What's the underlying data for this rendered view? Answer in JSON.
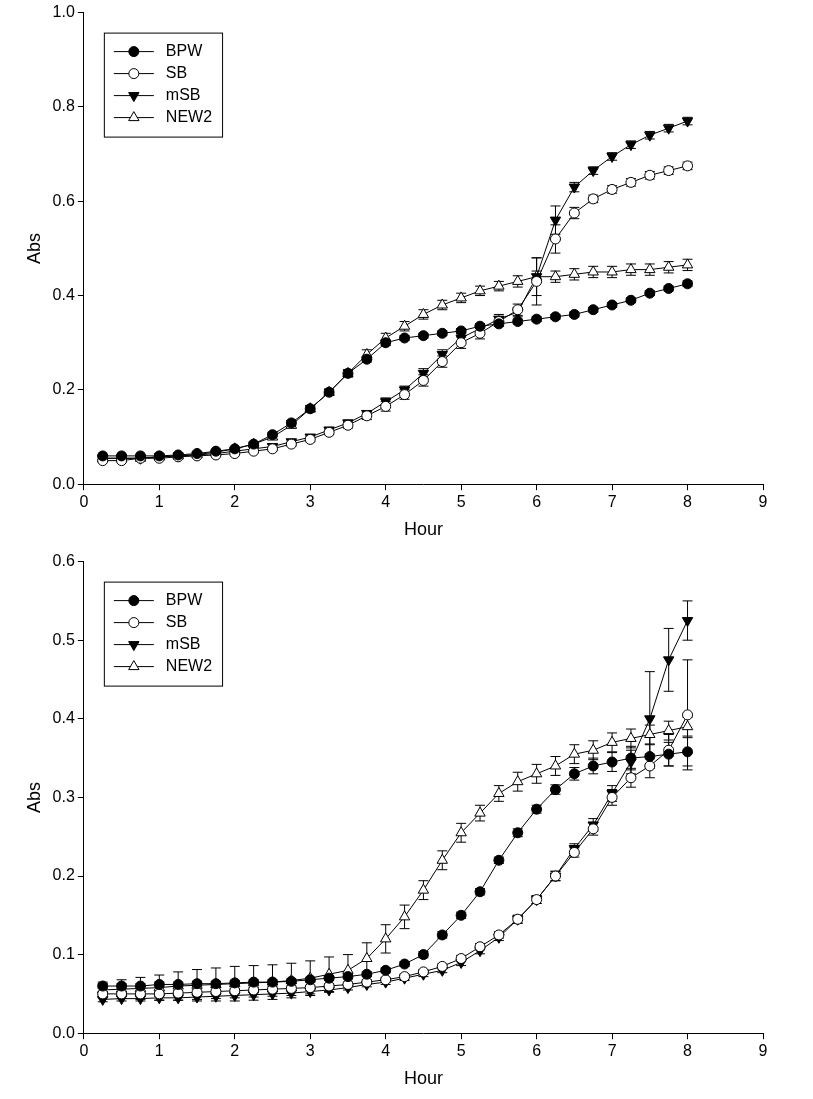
{
  "chart_data": [
    {
      "type": "line",
      "x_label": "Hour",
      "y_label": "Abs",
      "legend": "upper left",
      "grid": false,
      "xlim": [
        0,
        9
      ],
      "xticks": [
        0,
        1,
        2,
        3,
        4,
        5,
        6,
        7,
        8,
        9
      ],
      "ylim": [
        0,
        1
      ],
      "yticks": [
        {
          "value": 0,
          "label": "0.0"
        },
        0.2,
        0.4,
        0.6,
        0.8,
        {
          "value": 1,
          "label": "1.0"
        }
      ],
      "x": [
        0.25,
        0.5,
        0.75,
        1,
        1.25,
        1.5,
        1.75,
        2,
        2.25,
        2.5,
        2.75,
        3,
        3.25,
        3.5,
        3.75,
        4,
        4.25,
        4.5,
        4.75,
        5,
        5.25,
        5.5,
        5.75,
        6,
        6.25,
        6.5,
        6.75,
        7,
        7.25,
        7.5,
        7.75,
        8
      ],
      "series": [
        {
          "name": "BPW",
          "color": "#000000",
          "marker": "circle",
          "line_style": "solid",
          "values": [
            0.06,
            0.06,
            0.06,
            0.06,
            0.062,
            0.065,
            0.07,
            0.075,
            0.085,
            0.105,
            0.13,
            0.16,
            0.195,
            0.235,
            0.265,
            0.3,
            0.31,
            0.315,
            0.32,
            0.325,
            0.335,
            0.34,
            0.345,
            0.35,
            0.355,
            0.36,
            0.37,
            0.38,
            0.39,
            0.405,
            0.415,
            0.425
          ],
          "errors": [
            0.003,
            0.003,
            0.003,
            0.003,
            0.003,
            0.003,
            0.003,
            0.003,
            0.004,
            0.005,
            0.005,
            0.006,
            0.006,
            0.006,
            0.006,
            0.006,
            0.005,
            0.005,
            0.005,
            0.005,
            0.005,
            0.005,
            0.005,
            0.005,
            0.005,
            0.005,
            0.005,
            0.005,
            0.005,
            0.005,
            0.005,
            0.006
          ]
        },
        {
          "name": "SB",
          "color": "#000000",
          "marker": "circle-open",
          "line_style": "solid",
          "values": [
            0.05,
            0.05,
            0.055,
            0.055,
            0.058,
            0.06,
            0.062,
            0.065,
            0.07,
            0.075,
            0.085,
            0.095,
            0.11,
            0.125,
            0.145,
            0.165,
            0.19,
            0.22,
            0.26,
            0.3,
            0.32,
            0.345,
            0.37,
            0.43,
            0.52,
            0.575,
            0.605,
            0.625,
            0.64,
            0.655,
            0.665,
            0.675
          ],
          "errors": [
            0.003,
            0.003,
            0.003,
            0.003,
            0.003,
            0.003,
            0.003,
            0.003,
            0.003,
            0.004,
            0.004,
            0.005,
            0.005,
            0.006,
            0.008,
            0.01,
            0.01,
            0.012,
            0.012,
            0.012,
            0.012,
            0.01,
            0.012,
            0.05,
            0.03,
            0.012,
            0.008,
            0.008,
            0.008,
            0.008,
            0.008,
            0.008
          ]
        },
        {
          "name": "mSB",
          "color": "#000000",
          "marker": "triangle-down",
          "line_style": "solid",
          "values": [
            0.055,
            0.055,
            0.055,
            0.058,
            0.06,
            0.062,
            0.065,
            0.07,
            0.075,
            0.08,
            0.09,
            0.1,
            0.115,
            0.13,
            0.15,
            0.175,
            0.2,
            0.235,
            0.275,
            0.31,
            0.33,
            0.35,
            0.365,
            0.44,
            0.56,
            0.63,
            0.665,
            0.695,
            0.72,
            0.74,
            0.755,
            0.77
          ],
          "errors": [
            0.003,
            0.003,
            0.003,
            0.003,
            0.003,
            0.003,
            0.003,
            0.003,
            0.003,
            0.004,
            0.004,
            0.005,
            0.005,
            0.006,
            0.006,
            0.008,
            0.008,
            0.01,
            0.01,
            0.01,
            0.01,
            0.01,
            0.01,
            0.04,
            0.03,
            0.01,
            0.008,
            0.008,
            0.008,
            0.008,
            0.008,
            0.008
          ]
        },
        {
          "name": "NEW2",
          "color": "#000000",
          "marker": "triangle-open",
          "line_style": "solid",
          "values": [
            0.055,
            0.055,
            0.055,
            0.058,
            0.06,
            0.063,
            0.068,
            0.075,
            0.085,
            0.1,
            0.125,
            0.16,
            0.195,
            0.235,
            0.275,
            0.31,
            0.335,
            0.36,
            0.38,
            0.395,
            0.41,
            0.42,
            0.43,
            0.44,
            0.44,
            0.445,
            0.45,
            0.45,
            0.455,
            0.455,
            0.46,
            0.465
          ],
          "errors": [
            0.003,
            0.003,
            0.003,
            0.003,
            0.003,
            0.003,
            0.003,
            0.003,
            0.004,
            0.005,
            0.006,
            0.007,
            0.007,
            0.008,
            0.01,
            0.01,
            0.01,
            0.01,
            0.01,
            0.01,
            0.01,
            0.01,
            0.012,
            0.012,
            0.012,
            0.012,
            0.012,
            0.012,
            0.012,
            0.012,
            0.012,
            0.012
          ]
        }
      ]
    },
    {
      "type": "line",
      "x_label": "Hour",
      "y_label": "Abs",
      "legend": "upper left",
      "grid": false,
      "xlim": [
        0,
        9
      ],
      "xticks": [
        0,
        1,
        2,
        3,
        4,
        5,
        6,
        7,
        8,
        9
      ],
      "ylim": [
        0,
        0.6
      ],
      "yticks": [
        {
          "value": 0,
          "label": "0.0"
        },
        0.1,
        0.2,
        0.3,
        0.4,
        0.5,
        0.6
      ],
      "x": [
        0.25,
        0.5,
        0.75,
        1,
        1.25,
        1.5,
        1.75,
        2,
        2.25,
        2.5,
        2.75,
        3,
        3.25,
        3.5,
        3.75,
        4,
        4.25,
        4.5,
        4.75,
        5,
        5.25,
        5.5,
        5.75,
        6,
        6.25,
        6.5,
        6.75,
        7,
        7.25,
        7.5,
        7.75,
        8
      ],
      "series": [
        {
          "name": "BPW",
          "color": "#000000",
          "marker": "circle",
          "line_style": "solid",
          "values": [
            0.06,
            0.06,
            0.06,
            0.062,
            0.062,
            0.063,
            0.063,
            0.064,
            0.065,
            0.065,
            0.066,
            0.068,
            0.07,
            0.072,
            0.075,
            0.08,
            0.088,
            0.1,
            0.125,
            0.15,
            0.18,
            0.22,
            0.255,
            0.285,
            0.31,
            0.33,
            0.34,
            0.345,
            0.35,
            0.352,
            0.355,
            0.358
          ],
          "errors": [
            0.003,
            0.003,
            0.003,
            0.003,
            0.003,
            0.003,
            0.003,
            0.003,
            0.003,
            0.003,
            0.003,
            0.003,
            0.003,
            0.003,
            0.003,
            0.003,
            0.003,
            0.004,
            0.004,
            0.004,
            0.004,
            0.004,
            0.005,
            0.005,
            0.006,
            0.008,
            0.01,
            0.012,
            0.015,
            0.015,
            0.015,
            0.018
          ]
        },
        {
          "name": "SB",
          "color": "#000000",
          "marker": "circle-open",
          "line_style": "solid",
          "values": [
            0.05,
            0.05,
            0.05,
            0.05,
            0.051,
            0.052,
            0.053,
            0.054,
            0.055,
            0.056,
            0.057,
            0.058,
            0.06,
            0.062,
            0.065,
            0.068,
            0.072,
            0.078,
            0.085,
            0.095,
            0.11,
            0.125,
            0.145,
            0.17,
            0.2,
            0.23,
            0.26,
            0.3,
            0.325,
            0.34,
            0.36,
            0.405
          ],
          "errors": [
            0.003,
            0.003,
            0.003,
            0.003,
            0.003,
            0.003,
            0.003,
            0.003,
            0.003,
            0.003,
            0.003,
            0.003,
            0.003,
            0.003,
            0.003,
            0.003,
            0.003,
            0.003,
            0.003,
            0.004,
            0.004,
            0.004,
            0.005,
            0.005,
            0.006,
            0.006,
            0.008,
            0.01,
            0.012,
            0.015,
            0.02,
            0.07
          ]
        },
        {
          "name": "mSB",
          "color": "#000000",
          "marker": "triangle-down",
          "line_style": "solid",
          "values": [
            0.043,
            0.044,
            0.044,
            0.045,
            0.045,
            0.046,
            0.047,
            0.048,
            0.049,
            0.05,
            0.051,
            0.053,
            0.055,
            0.058,
            0.062,
            0.065,
            0.07,
            0.075,
            0.08,
            0.09,
            0.105,
            0.122,
            0.145,
            0.17,
            0.2,
            0.235,
            0.265,
            0.305,
            0.345,
            0.4,
            0.475,
            0.525
          ],
          "errors": [
            0.003,
            0.003,
            0.003,
            0.003,
            0.003,
            0.003,
            0.003,
            0.003,
            0.003,
            0.003,
            0.003,
            0.003,
            0.003,
            0.003,
            0.003,
            0.003,
            0.003,
            0.003,
            0.003,
            0.004,
            0.004,
            0.004,
            0.005,
            0.005,
            0.006,
            0.006,
            0.008,
            0.01,
            0.015,
            0.06,
            0.04,
            0.025
          ]
        },
        {
          "name": "NEW2",
          "color": "#000000",
          "marker": "triangle-open",
          "line_style": "solid",
          "values": [
            0.055,
            0.056,
            0.057,
            0.058,
            0.06,
            0.061,
            0.062,
            0.063,
            0.064,
            0.065,
            0.067,
            0.07,
            0.075,
            0.08,
            0.095,
            0.12,
            0.148,
            0.182,
            0.22,
            0.255,
            0.28,
            0.305,
            0.32,
            0.33,
            0.34,
            0.355,
            0.36,
            0.37,
            0.375,
            0.38,
            0.385,
            0.39
          ],
          "errors": [
            0.01,
            0.012,
            0.014,
            0.016,
            0.018,
            0.02,
            0.021,
            0.022,
            0.022,
            0.022,
            0.022,
            0.022,
            0.022,
            0.02,
            0.02,
            0.018,
            0.015,
            0.012,
            0.012,
            0.012,
            0.01,
            0.01,
            0.012,
            0.012,
            0.012,
            0.012,
            0.012,
            0.012,
            0.012,
            0.012,
            0.012,
            0.012
          ]
        }
      ]
    }
  ]
}
